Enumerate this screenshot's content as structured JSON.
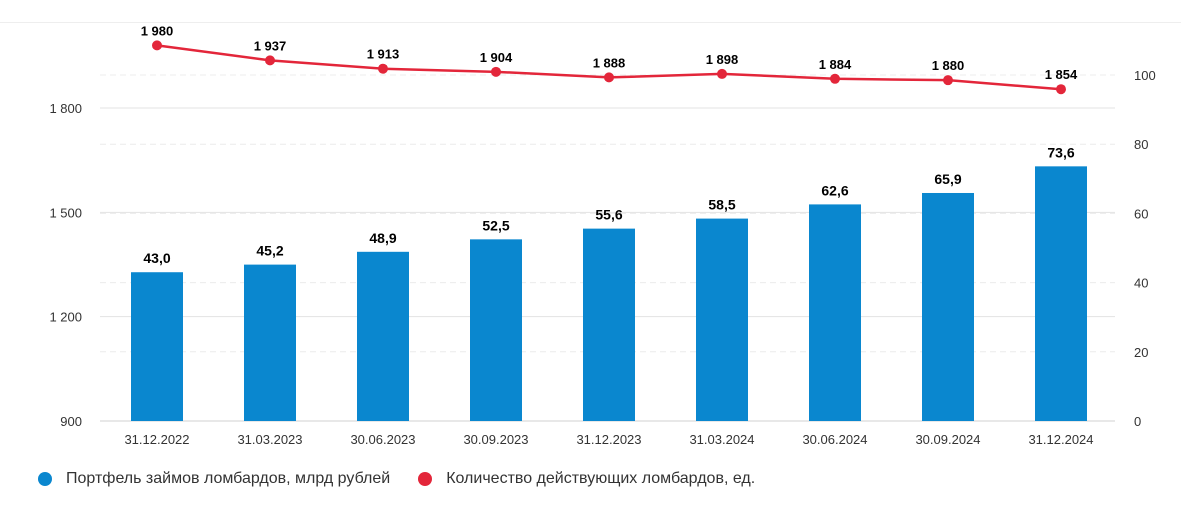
{
  "chart_data": {
    "type": "bar",
    "categories": [
      "31.12.2022",
      "31.03.2023",
      "30.06.2023",
      "30.09.2023",
      "31.12.2023",
      "31.03.2024",
      "30.06.2024",
      "30.09.2024",
      "31.12.2024"
    ],
    "series": [
      {
        "name": "Портфель займов ломбардов, млрд рублей",
        "type": "bar",
        "axis": "right",
        "color": "#0a87cf",
        "values": [
          43.0,
          45.2,
          48.9,
          52.5,
          55.6,
          58.5,
          62.6,
          65.9,
          73.6
        ],
        "labels": [
          "43,0",
          "45,2",
          "48,9",
          "52,5",
          "55,6",
          "58,5",
          "62,6",
          "65,9",
          "73,6"
        ]
      },
      {
        "name": "Количество действующих ломбардов, ед.",
        "type": "line",
        "axis": "left",
        "color": "#e3263a",
        "values": [
          1980,
          1937,
          1913,
          1904,
          1888,
          1898,
          1884,
          1880,
          1854
        ],
        "labels": [
          "1 980",
          "1 937",
          "1 913",
          "1 904",
          "1 888",
          "1 898",
          "1 884",
          "1 880",
          "1 854"
        ]
      }
    ],
    "y_left": {
      "range": [
        900,
        2100
      ],
      "ticks": [
        900,
        1200,
        1500,
        1800
      ],
      "tick_labels": [
        "900",
        "1 200",
        "1 500",
        "1 800"
      ]
    },
    "y_right": {
      "range": [
        0,
        100
      ],
      "ticks": [
        0,
        20,
        40,
        60,
        80,
        100
      ],
      "tick_labels": [
        "0",
        "20",
        "40",
        "60",
        "80",
        "100"
      ]
    },
    "title": "",
    "xlabel": "",
    "ylabel": "",
    "grid": true,
    "legend_position": "bottom-left"
  },
  "legend": {
    "items": [
      {
        "label": "Портфель займов ломбардов, млрд рублей",
        "color": "#0a87cf"
      },
      {
        "label": "Количество действующих ломбардов, ед.",
        "color": "#e3263a"
      }
    ]
  }
}
